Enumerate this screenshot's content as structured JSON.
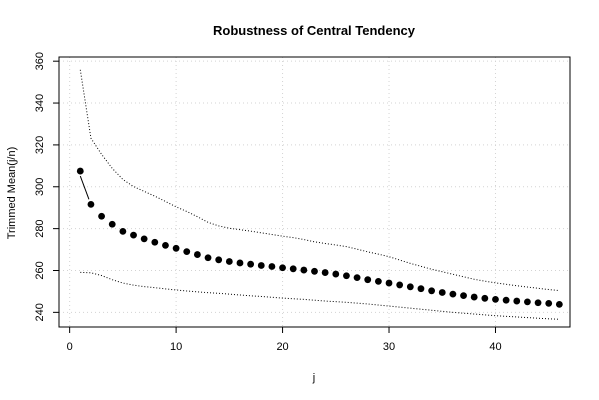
{
  "chart_data": {
    "type": "scatter",
    "title": "Robustness of Central Tendency",
    "xlabel": "j",
    "ylabel": "Trimmed Mean(j/n)",
    "xlim": [
      -1,
      47
    ],
    "ylim": [
      233,
      362
    ],
    "xticks": [
      0,
      10,
      20,
      30,
      40
    ],
    "yticks": [
      240,
      260,
      280,
      300,
      320,
      340,
      360
    ],
    "grid": true,
    "legend": "none",
    "x": [
      1,
      2,
      3,
      4,
      5,
      6,
      7,
      8,
      9,
      10,
      11,
      12,
      13,
      14,
      15,
      16,
      17,
      18,
      19,
      20,
      21,
      22,
      23,
      24,
      25,
      26,
      27,
      28,
      29,
      30,
      31,
      32,
      33,
      34,
      35,
      36,
      37,
      38,
      39,
      40,
      41,
      42,
      43,
      44,
      45,
      46
    ],
    "series": [
      {
        "role": "trimmed-mean",
        "style": "points",
        "values": [
          307.5,
          291.6,
          285.9,
          282.1,
          278.7,
          276.9,
          275.1,
          273.5,
          272.0,
          270.6,
          269.0,
          267.6,
          266.1,
          265.1,
          264.3,
          263.6,
          263.0,
          262.4,
          261.9,
          261.3,
          260.8,
          260.2,
          259.6,
          259.0,
          258.3,
          257.5,
          256.6,
          255.6,
          254.8,
          254.0,
          253.1,
          252.2,
          251.3,
          250.3,
          249.5,
          248.7,
          248.0,
          247.3,
          246.7,
          246.2,
          245.8,
          245.4,
          245.0,
          244.6,
          244.3,
          243.8
        ]
      },
      {
        "role": "upper-bound",
        "style": "dotted",
        "values": [
          355.9,
          323.2,
          315.5,
          308.8,
          303.5,
          300.1,
          297.8,
          295.5,
          293.0,
          290.4,
          288.2,
          285.7,
          283.0,
          281.3,
          280.2,
          279.5,
          278.8,
          278.0,
          277.2,
          276.4,
          275.7,
          274.8,
          273.7,
          272.9,
          272.2,
          271.4,
          270.2,
          268.9,
          267.8,
          266.6,
          265.0,
          263.4,
          262.0,
          260.6,
          259.4,
          258.2,
          257.0,
          255.8,
          254.9,
          254.1,
          253.4,
          252.7,
          252.1,
          251.5,
          250.9,
          250.4
        ]
      },
      {
        "role": "lower-bound",
        "style": "dotted",
        "values": [
          259.1,
          258.9,
          257.6,
          255.6,
          254.0,
          253.0,
          252.3,
          251.8,
          251.2,
          250.7,
          250.2,
          249.8,
          249.4,
          249.1,
          248.7,
          248.3,
          247.9,
          247.6,
          247.2,
          246.8,
          246.5,
          246.2,
          245.8,
          245.4,
          245.1,
          244.8,
          244.4,
          244.0,
          243.5,
          243.0,
          242.5,
          242.0,
          241.5,
          241.0,
          240.5,
          240.0,
          239.6,
          239.2,
          238.8,
          238.4,
          238.1,
          237.8,
          237.5,
          237.2,
          236.9,
          236.7
        ]
      }
    ],
    "colors": {
      "points": "#000000",
      "bounds": "#000000",
      "grid": "#d3d3d3"
    }
  }
}
